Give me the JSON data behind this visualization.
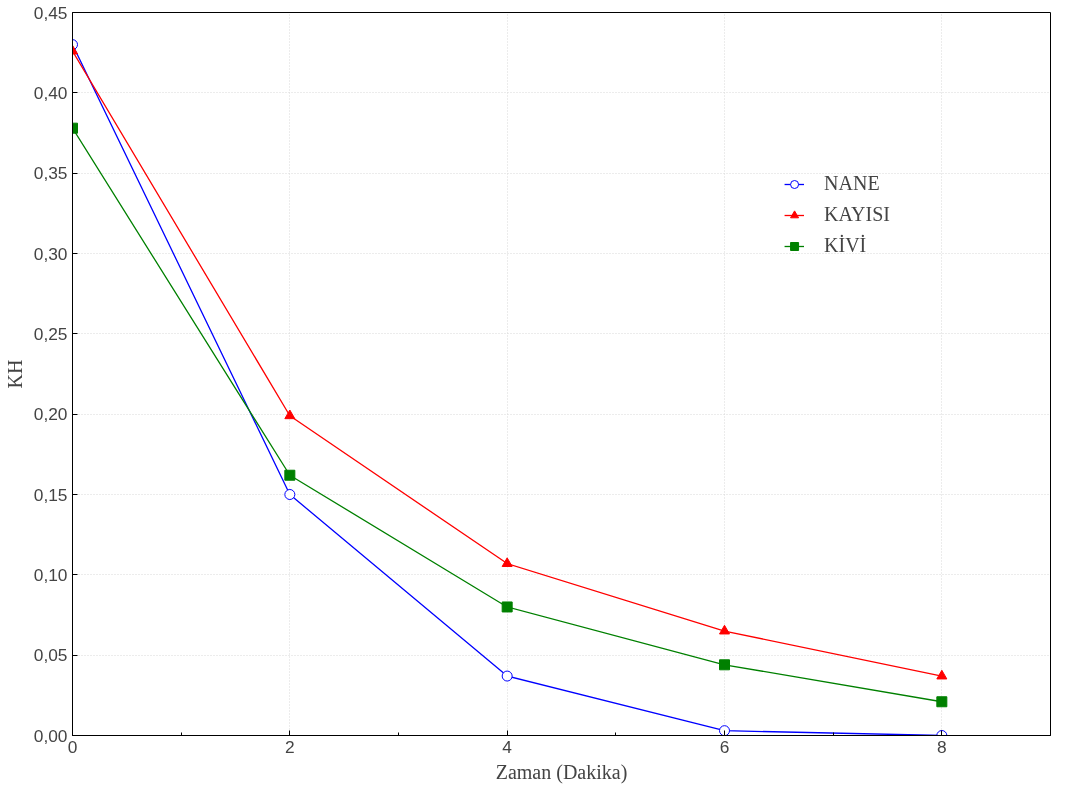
{
  "chart_data": {
    "type": "line",
    "xlabel": "Zaman (Dakika)",
    "ylabel": "KH",
    "x": [
      0,
      2,
      4,
      6,
      8
    ],
    "xlim": [
      0,
      9
    ],
    "xticks": [
      0,
      2,
      4,
      6,
      8
    ],
    "ylim": [
      0,
      0.45
    ],
    "yticks": [
      {
        "value": 0,
        "label": "0,00"
      },
      {
        "value": 0.05,
        "label": "0,05"
      },
      {
        "value": 0.1,
        "label": "0,10"
      },
      {
        "value": 0.15,
        "label": "0,15"
      },
      {
        "value": 0.2,
        "label": "0,20"
      },
      {
        "value": 0.25,
        "label": "0,25"
      },
      {
        "value": 0.3,
        "label": "0,30"
      },
      {
        "value": 0.35,
        "label": "0,35"
      },
      {
        "value": 0.4,
        "label": "0,40"
      },
      {
        "value": 0.45,
        "label": "0,45"
      }
    ],
    "grid": true,
    "legend": "top right",
    "line_style": "solid",
    "series": [
      {
        "name": "NANE",
        "color": "#0000ff",
        "marker": "circle",
        "values": [
          0.43,
          0.15,
          0.037,
          0.003,
          0.0
        ]
      },
      {
        "name": "KAYISI",
        "color": "#ff0000",
        "marker": "triangle",
        "values": [
          0.426,
          0.199,
          0.107,
          0.065,
          0.037
        ]
      },
      {
        "name": "KİVİ",
        "color": "#008000",
        "marker": "square",
        "values": [
          0.378,
          0.162,
          0.08,
          0.044,
          0.021
        ]
      }
    ]
  }
}
